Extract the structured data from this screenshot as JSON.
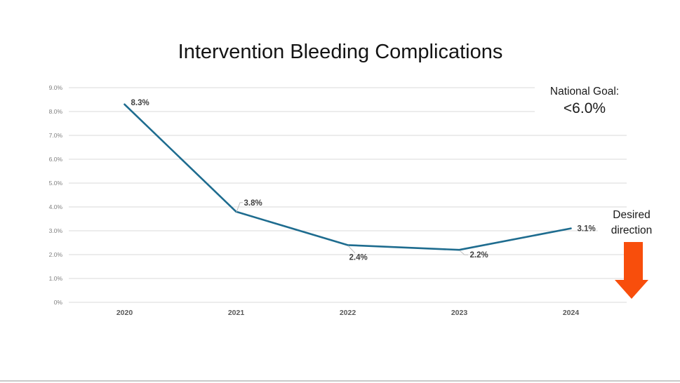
{
  "slide": {
    "title": "Intervention Bleeding Complications",
    "national_goal": {
      "label": "National Goal:",
      "value": "<6.0%"
    },
    "desired_direction": {
      "line1": "Desired",
      "line2": "direction",
      "arrow_icon": "down-arrow-icon",
      "arrow_color": "#F84E0C"
    }
  },
  "chart_data": {
    "type": "line",
    "title": "Intervention Bleeding Complications",
    "categories": [
      "2020",
      "2021",
      "2022",
      "2023",
      "2024"
    ],
    "values": [
      8.3,
      3.8,
      2.4,
      2.2,
      3.1
    ],
    "data_labels": [
      "8.3%",
      "3.8%",
      "2.4%",
      "2.2%",
      "3.1%"
    ],
    "y_tick_labels": [
      "9.0%",
      "8.0%",
      "7.0%",
      "6.0%",
      "5.0%",
      "4.0%",
      "3.0%",
      "2.0%",
      "1.0%",
      "0%"
    ],
    "y_tick_values": [
      9,
      8,
      7,
      6,
      5,
      4,
      3,
      2,
      1,
      0
    ],
    "ylim": [
      0,
      9
    ],
    "xlabel": "",
    "ylabel": "",
    "grid": true,
    "legend": "none",
    "line_color": "#1E6C8F",
    "gridline_color": "#D9D9D9",
    "leader_line_color": "#BFBFBF",
    "tick_label_color": "#7F7F7F",
    "category_label_color": "#595959",
    "data_label_color": "#3F3F3F"
  }
}
